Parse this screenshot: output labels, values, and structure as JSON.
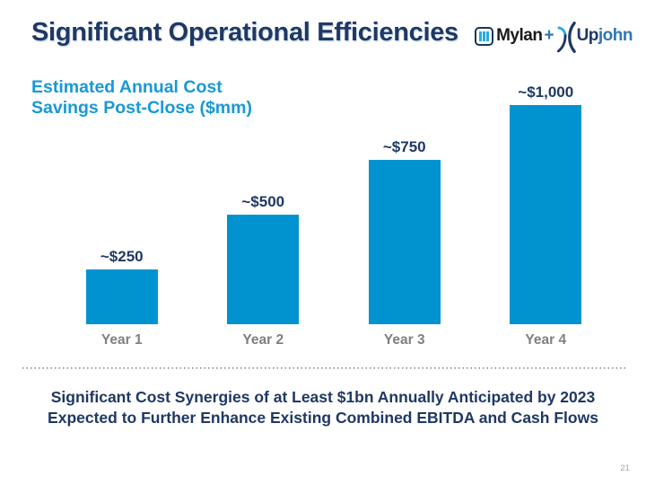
{
  "slide": {
    "title": "Significant Operational Efficiencies",
    "page_number": "21",
    "footer_line1": "Significant Cost Synergies of at Least $1bn Annually Anticipated by 2023",
    "footer_line2": "Expected to Further Enhance Existing Combined EBITDA and Cash Flows"
  },
  "logo": {
    "mylan_text": "Mylan",
    "plus": "+",
    "upjohn_up": "Up",
    "upjohn_john": "john"
  },
  "chart_data": {
    "type": "bar",
    "title": "Estimated Annual Cost Savings Post-Close ($mm)",
    "title_lines": [
      "Estimated Annual Cost",
      "Savings Post-Close ($mm)"
    ],
    "categories": [
      "Year 1",
      "Year 2",
      "Year 3",
      "Year 4"
    ],
    "values": [
      250,
      500,
      750,
      1000
    ],
    "value_labels": [
      "~$250",
      "~$500",
      "~$750",
      "~$1,000"
    ],
    "xlabel": "",
    "ylabel": "",
    "ylim": [
      0,
      1000
    ],
    "grid": false,
    "legend": false,
    "bar_color": "#0093D0"
  },
  "colors": {
    "title_navy": "#1F3864",
    "chart_title_blue": "#1899D5",
    "bar_blue": "#0093D0",
    "value_label_navy": "#1F3864",
    "axis_label_gray": "#808080",
    "divider_gray": "#8C8C8C",
    "page_number_gray": "#A6A6A6",
    "mylan_bar_cyan": "#29ABE2",
    "upjohn_blue": "#2E75B6"
  }
}
